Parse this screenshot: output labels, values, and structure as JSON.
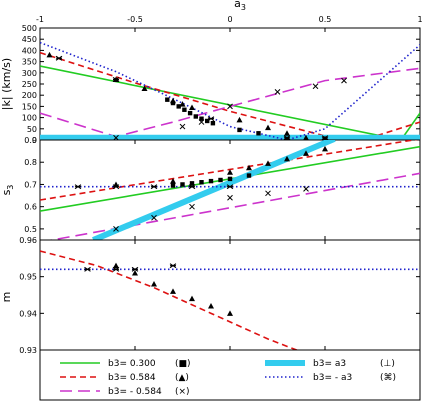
{
  "chart_data": [
    {
      "type": "line",
      "ylabel": "|k| (km/s)",
      "xlim": [
        -1,
        1
      ],
      "ylim": [
        0,
        500
      ],
      "y_ticks": [
        "0",
        "50",
        "100",
        "150",
        "200",
        "250",
        "300",
        "350",
        "400",
        "450",
        "500"
      ],
      "series": [
        {
          "name": "b3= 0.300",
          "x": [
            -1,
            0.9
          ],
          "values": [
            330,
            0
          ]
        },
        {
          "name": "b3= 0.300 tail",
          "x": [
            0.9,
            1
          ],
          "values": [
            0,
            120
          ]
        },
        {
          "name": "b3= 0.584",
          "x": [
            -1,
            -0.5,
            0,
            0.5,
            0.7,
            1
          ],
          "values": [
            390,
            255,
            128,
            18,
            0,
            80
          ]
        },
        {
          "name": "b3= - 0.584",
          "x": [
            -1,
            -0.6,
            -0.3,
            0,
            0.5,
            1
          ],
          "values": [
            120,
            15,
            80,
            150,
            265,
            320
          ]
        },
        {
          "name": "b3= a3",
          "x": [
            -1,
            1
          ],
          "values": [
            10,
            10
          ]
        },
        {
          "name": "b3= - a3",
          "x": [
            -1,
            -0.6,
            -0.3,
            0,
            0.3,
            0.5,
            1
          ],
          "values": [
            435,
            305,
            185,
            60,
            0,
            50,
            425
          ]
        }
      ],
      "markers": {
        "square": {
          "x": [
            -0.33,
            -0.3,
            -0.27,
            -0.24,
            -0.21,
            -0.18,
            -0.15,
            -0.12,
            -0.09,
            0.05,
            0.15,
            0.3
          ],
          "values": [
            180,
            165,
            150,
            135,
            120,
            105,
            95,
            85,
            75,
            45,
            30,
            5
          ]
        },
        "triangle": {
          "x": [
            -0.95,
            -0.6,
            -0.45,
            -0.3,
            -0.25,
            -0.2,
            0.05,
            0.2,
            0.3,
            0.4,
            0.5
          ],
          "values": [
            380,
            270,
            230,
            175,
            160,
            145,
            90,
            55,
            30,
            10,
            5
          ]
        },
        "cross": {
          "x": [
            -0.6,
            -0.25,
            -0.15,
            0.0,
            0.25,
            0.45,
            0.6
          ],
          "values": [
            10,
            60,
            80,
            150,
            215,
            240,
            265
          ]
        },
        "star": {
          "x": [
            -0.9,
            -0.6,
            -0.1,
            0.3,
            0.5
          ],
          "values": [
            365,
            270,
            95,
            10,
            10
          ]
        }
      }
    },
    {
      "type": "line",
      "ylabel": "s3",
      "xlim": [
        -1,
        1
      ],
      "ylim": [
        0.45,
        0.9
      ],
      "y_ticks": [
        "0.5",
        "0.6",
        "0.7",
        "0.8",
        "0.9"
      ],
      "series": [
        {
          "name": "b3= 0.300",
          "x": [
            -1,
            1
          ],
          "values": [
            0.58,
            0.87
          ]
        },
        {
          "name": "b3= 0.584",
          "x": [
            -1,
            1
          ],
          "values": [
            0.63,
            0.905
          ]
        },
        {
          "name": "b3= - 0.584",
          "x": [
            -1,
            1
          ],
          "values": [
            0.44,
            0.75
          ]
        },
        {
          "name": "b3= a3",
          "x": [
            -0.72,
            0.55
          ],
          "values": [
            0.45,
            0.905
          ]
        },
        {
          "name": "b3= - a3",
          "x": [
            -1,
            1
          ],
          "values": [
            0.69,
            0.69
          ]
        }
      ],
      "markers": {
        "square": {
          "x": [
            -0.3,
            -0.25,
            -0.2,
            -0.15,
            -0.1,
            -0.05,
            0.0,
            0.1
          ],
          "values": [
            0.695,
            0.7,
            0.705,
            0.71,
            0.715,
            0.72,
            0.725,
            0.74
          ]
        },
        "triangle": {
          "x": [
            -0.6,
            -0.3,
            0.0,
            0.1,
            0.2,
            0.3,
            0.4,
            0.5
          ],
          "values": [
            0.7,
            0.715,
            0.755,
            0.775,
            0.795,
            0.815,
            0.84,
            0.86
          ]
        },
        "cross": {
          "x": [
            -0.6,
            -0.4,
            -0.2,
            0.0,
            0.2,
            0.4
          ],
          "values": [
            0.5,
            0.55,
            0.6,
            0.64,
            0.66,
            0.68
          ]
        },
        "star": {
          "x": [
            -0.8,
            -0.6,
            -0.4,
            -0.2,
            0.0
          ],
          "values": [
            0.69,
            0.69,
            0.69,
            0.69,
            0.69
          ]
        }
      }
    },
    {
      "type": "line",
      "xlabel": "a3",
      "x_ticks": [
        "-1",
        "-0.5",
        "0",
        "0.5",
        "1"
      ],
      "ylabel": "m",
      "xlim": [
        -1,
        1
      ],
      "ylim": [
        0.93,
        0.96
      ],
      "y_ticks": [
        "0.93",
        "0.94",
        "0.95",
        "0.96"
      ],
      "series": [
        {
          "name": "b3= 0.584",
          "x": [
            -1,
            -0.7,
            -0.4,
            -0.1,
            0.2,
            0.45
          ],
          "values": [
            0.957,
            0.953,
            0.947,
            0.94,
            0.933,
            0.928
          ]
        },
        {
          "name": "b3= - a3",
          "x": [
            -1,
            1
          ],
          "values": [
            0.952,
            0.952
          ]
        }
      ],
      "markers": {
        "triangle": {
          "x": [
            -0.6,
            -0.5,
            -0.4,
            -0.3,
            -0.2,
            -0.1,
            0.0
          ],
          "values": [
            0.953,
            0.951,
            0.948,
            0.946,
            0.944,
            0.942,
            0.94
          ]
        },
        "star": {
          "x": [
            -0.75,
            -0.6,
            -0.5,
            -0.3
          ],
          "values": [
            0.952,
            0.952,
            0.952,
            0.953
          ]
        }
      }
    }
  ],
  "legend": {
    "items": [
      {
        "label": "b3= 0.300",
        "marker_label": "(■)",
        "color": "#22cc22",
        "dash": "solid"
      },
      {
        "label": "b3= 0.584",
        "marker_label": "(▲)",
        "color": "#dd1111",
        "dash": "dashed"
      },
      {
        "label": "b3= - 0.584",
        "marker_label": "(×)",
        "color": "#cc33cc",
        "dash": "long-dash"
      },
      {
        "label": "b3= a3",
        "marker_label": "(⊥)",
        "color": "#33ccee",
        "dash": "thick"
      },
      {
        "label": "b3= - a3",
        "marker_label": "(⌘)",
        "color": "#1e22cc",
        "dash": "dotted"
      }
    ]
  }
}
